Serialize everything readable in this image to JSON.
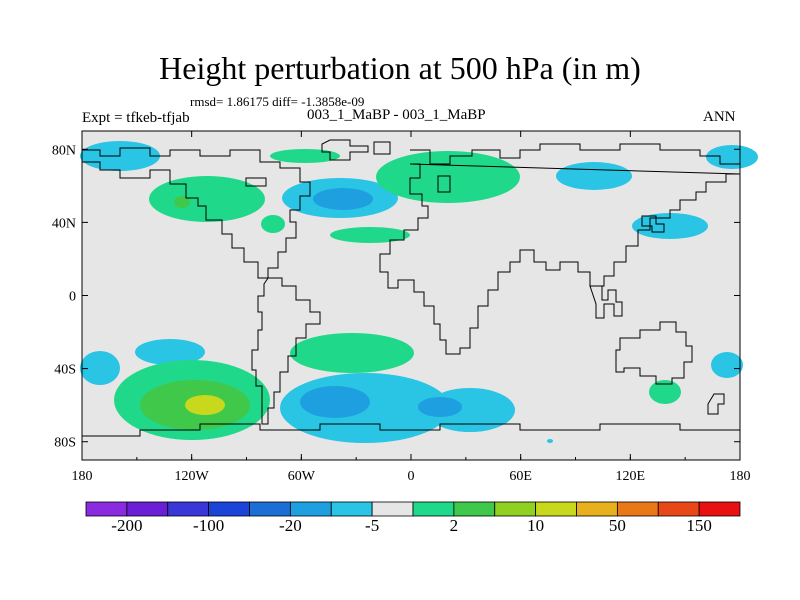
{
  "title": "Height perturbation at 500 hPa (in m)",
  "stats": "rmsd= 1.86175 diff= -1.3858e-09",
  "left_label": "Expt = tfkeb-tfjab",
  "center_label": "003_1_MaBP - 003_1_MaBP",
  "right_label": "ANN",
  "map": {
    "projection": "cylindrical-equidistant",
    "lon_range": [
      -180,
      180
    ],
    "lat_range": [
      -90,
      90
    ],
    "background_color": "#e6e6e6",
    "lon_ticks": [
      "180",
      "120W",
      "60W",
      "0",
      "60E",
      "120E",
      "180"
    ],
    "lat_ticks": [
      "80N",
      "40N",
      "0",
      "40S",
      "80S"
    ]
  },
  "colorbar": {
    "colors": [
      "#8a2be2",
      "#6a1fd6",
      "#3a36d8",
      "#1c44d8",
      "#1a6ed6",
      "#1ea0e0",
      "#2ac4e4",
      "#e6e6e6",
      "#20d88a",
      "#40c84a",
      "#90d020",
      "#c8d81c",
      "#e8b01c",
      "#e87818",
      "#e84818",
      "#e81010"
    ],
    "labels": [
      "-200",
      "-100",
      "-20",
      "-5",
      "2",
      "10",
      "50",
      "150"
    ]
  }
}
